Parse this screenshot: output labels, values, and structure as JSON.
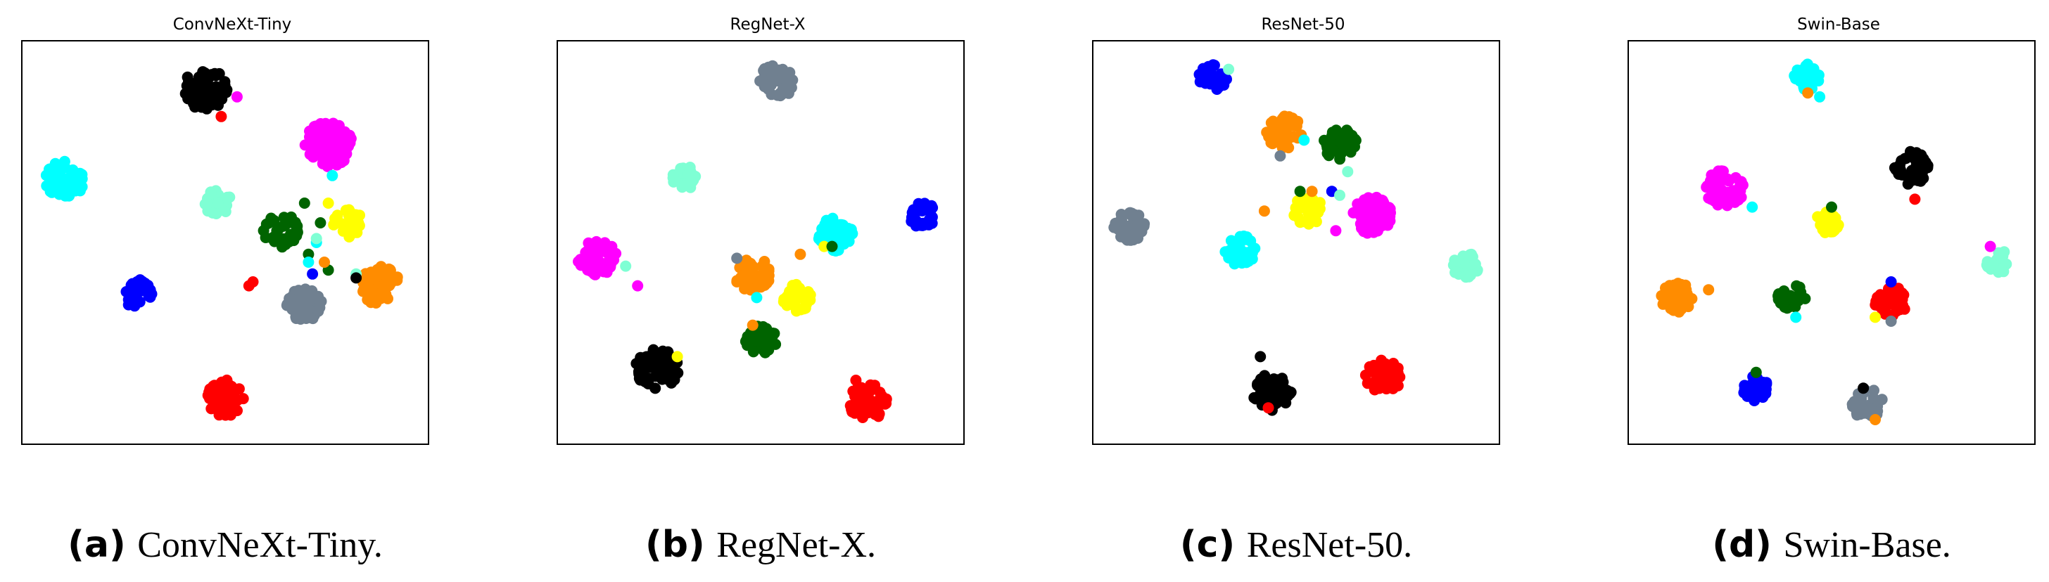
{
  "chart_data": [
    {
      "type": "scatter",
      "title": "ConvNeXt-Tiny",
      "caption_label": "(a)",
      "caption_text": "ConvNeXt-Tiny.",
      "xlim": [
        0,
        100
      ],
      "ylim": [
        0,
        100
      ],
      "axis_ticks": false,
      "grid": false,
      "clusters": [
        {
          "color": "#000000",
          "cx": 45,
          "cy": 89,
          "r": 5.5,
          "n": 80
        },
        {
          "color": "#ff00ff",
          "cx": 76,
          "cy": 75,
          "r": 6,
          "n": 90
        },
        {
          "color": "#00ffff",
          "cx": 9.5,
          "cy": 66,
          "r": 5,
          "n": 60
        },
        {
          "color": "#7fffd4",
          "cx": 48,
          "cy": 60,
          "r": 3.5,
          "n": 35
        },
        {
          "color": "#006400",
          "cx": 64,
          "cy": 53,
          "r": 4.5,
          "n": 40
        },
        {
          "color": "#ffff00",
          "cx": 81,
          "cy": 55,
          "r": 3.8,
          "n": 35
        },
        {
          "color": "#ff8c00",
          "cx": 89,
          "cy": 39,
          "r": 5.2,
          "n": 60
        },
        {
          "color": "#708090",
          "cx": 70,
          "cy": 34,
          "r": 4.5,
          "n": 55
        },
        {
          "color": "#0000ff",
          "cx": 28,
          "cy": 37,
          "r": 3.8,
          "n": 35
        },
        {
          "color": "#ff0000",
          "cx": 50,
          "cy": 10.5,
          "r": 4.8,
          "n": 70
        }
      ],
      "outliers": [
        {
          "color": "#ff00ff",
          "x": 53,
          "y": 87
        },
        {
          "color": "#ff0000",
          "x": 49,
          "y": 82
        },
        {
          "color": "#ff0000",
          "x": 56,
          "y": 39
        },
        {
          "color": "#ff0000",
          "x": 57,
          "y": 40
        },
        {
          "color": "#006400",
          "x": 70,
          "y": 60
        },
        {
          "color": "#006400",
          "x": 74,
          "y": 55
        },
        {
          "color": "#006400",
          "x": 71,
          "y": 47
        },
        {
          "color": "#006400",
          "x": 76,
          "y": 43
        },
        {
          "color": "#00ffff",
          "x": 73,
          "y": 50
        },
        {
          "color": "#00ffff",
          "x": 77,
          "y": 67
        },
        {
          "color": "#00ffff",
          "x": 71,
          "y": 45
        },
        {
          "color": "#7fffd4",
          "x": 73,
          "y": 51
        },
        {
          "color": "#7fffd4",
          "x": 83,
          "y": 42
        },
        {
          "color": "#ffff00",
          "x": 76,
          "y": 60
        },
        {
          "color": "#ff8c00",
          "x": 75,
          "y": 45
        },
        {
          "color": "#0000ff",
          "x": 72,
          "y": 42
        },
        {
          "color": "#000000",
          "x": 83,
          "y": 41
        }
      ]
    },
    {
      "type": "scatter",
      "title": "RegNet-X",
      "caption_label": "(b)",
      "caption_text": "RegNet-X.",
      "xlim": [
        0,
        100
      ],
      "ylim": [
        0,
        100
      ],
      "axis_ticks": false,
      "grid": false,
      "clusters": [
        {
          "color": "#708090",
          "cx": 54,
          "cy": 91,
          "r": 4.5,
          "n": 45
        },
        {
          "color": "#7fffd4",
          "cx": 31,
          "cy": 67,
          "r": 3.5,
          "n": 30
        },
        {
          "color": "#ff00ff",
          "cx": 9,
          "cy": 46,
          "r": 5,
          "n": 60
        },
        {
          "color": "#00ffff",
          "cx": 69,
          "cy": 52,
          "r": 4.5,
          "n": 45
        },
        {
          "color": "#0000ff",
          "cx": 91,
          "cy": 57,
          "r": 3.5,
          "n": 30
        },
        {
          "color": "#ff8c00",
          "cx": 48,
          "cy": 42,
          "r": 4.5,
          "n": 45
        },
        {
          "color": "#ffff00",
          "cx": 59,
          "cy": 36,
          "r": 3.8,
          "n": 35
        },
        {
          "color": "#006400",
          "cx": 50,
          "cy": 25,
          "r": 4,
          "n": 35
        },
        {
          "color": "#000000",
          "cx": 24,
          "cy": 18,
          "r": 5.5,
          "n": 70
        },
        {
          "color": "#ff0000",
          "cx": 77,
          "cy": 9.5,
          "r": 4.8,
          "n": 55
        }
      ],
      "outliers": [
        {
          "color": "#7fffd4",
          "x": 16,
          "y": 44
        },
        {
          "color": "#ff00ff",
          "x": 19,
          "y": 39
        },
        {
          "color": "#708090",
          "x": 44,
          "y": 46
        },
        {
          "color": "#ff8c00",
          "x": 60,
          "y": 47
        },
        {
          "color": "#ffff00",
          "x": 66,
          "y": 49
        },
        {
          "color": "#006400",
          "x": 68,
          "y": 49
        },
        {
          "color": "#00ffff",
          "x": 49,
          "y": 36
        },
        {
          "color": "#ff8c00",
          "x": 48,
          "y": 29
        },
        {
          "color": "#ffff00",
          "x": 29,
          "y": 21
        },
        {
          "color": "#ff0000",
          "x": 74,
          "y": 15
        }
      ]
    },
    {
      "type": "scatter",
      "title": "ResNet-50",
      "caption_label": "(c)",
      "caption_text": "ResNet-50.",
      "xlim": [
        0,
        100
      ],
      "ylim": [
        0,
        100
      ],
      "axis_ticks": false,
      "grid": false,
      "clusters": [
        {
          "color": "#0000ff",
          "cx": 29,
          "cy": 92,
          "r": 3.5,
          "n": 30
        },
        {
          "color": "#ff8c00",
          "cx": 47,
          "cy": 78,
          "r": 4.5,
          "n": 45
        },
        {
          "color": "#006400",
          "cx": 61,
          "cy": 75,
          "r": 4.2,
          "n": 40
        },
        {
          "color": "#ff00ff",
          "cx": 69,
          "cy": 57,
          "r": 5,
          "n": 60
        },
        {
          "color": "#ffff00",
          "cx": 53,
          "cy": 58,
          "r": 3.8,
          "n": 35
        },
        {
          "color": "#00ffff",
          "cx": 36,
          "cy": 48,
          "r": 4,
          "n": 40
        },
        {
          "color": "#708090",
          "cx": 8,
          "cy": 54,
          "r": 4,
          "n": 40
        },
        {
          "color": "#7fffd4",
          "cx": 93,
          "cy": 44,
          "r": 3.5,
          "n": 30
        },
        {
          "color": "#000000",
          "cx": 44,
          "cy": 12,
          "r": 5,
          "n": 55
        },
        {
          "color": "#ff0000",
          "cx": 72,
          "cy": 16,
          "r": 4.5,
          "n": 45
        }
      ],
      "outliers": [
        {
          "color": "#7fffd4",
          "x": 33,
          "y": 94
        },
        {
          "color": "#00ffff",
          "x": 52,
          "y": 76
        },
        {
          "color": "#708090",
          "x": 46,
          "y": 72
        },
        {
          "color": "#7fffd4",
          "x": 63,
          "y": 68
        },
        {
          "color": "#ff8c00",
          "x": 42,
          "y": 58
        },
        {
          "color": "#006400",
          "x": 51,
          "y": 63
        },
        {
          "color": "#ff8c00",
          "x": 54,
          "y": 63
        },
        {
          "color": "#0000ff",
          "x": 59,
          "y": 63
        },
        {
          "color": "#7fffd4",
          "x": 61,
          "y": 62
        },
        {
          "color": "#ff00ff",
          "x": 60,
          "y": 53
        },
        {
          "color": "#000000",
          "x": 41,
          "y": 21
        },
        {
          "color": "#ff0000",
          "x": 43,
          "y": 8
        }
      ]
    },
    {
      "type": "scatter",
      "title": "Swin-Base",
      "caption_label": "(d)",
      "caption_text": "Swin-Base.",
      "xlim": [
        0,
        100
      ],
      "ylim": [
        0,
        100
      ],
      "axis_ticks": false,
      "grid": false,
      "clusters": [
        {
          "color": "#00ffff",
          "cx": 44,
          "cy": 92,
          "r": 3.5,
          "n": 35
        },
        {
          "color": "#000000",
          "cx": 70,
          "cy": 69,
          "r": 4.5,
          "n": 45
        },
        {
          "color": "#ff00ff",
          "cx": 23,
          "cy": 64,
          "r": 5,
          "n": 55
        },
        {
          "color": "#ffff00",
          "cx": 49,
          "cy": 55,
          "r": 3,
          "n": 25
        },
        {
          "color": "#ff8c00",
          "cx": 11,
          "cy": 36,
          "r": 4,
          "n": 40
        },
        {
          "color": "#006400",
          "cx": 40,
          "cy": 36,
          "r": 3.5,
          "n": 30
        },
        {
          "color": "#ff0000",
          "cx": 65,
          "cy": 35,
          "r": 4.2,
          "n": 45
        },
        {
          "color": "#7fffd4",
          "cx": 92,
          "cy": 45,
          "r": 3.2,
          "n": 25
        },
        {
          "color": "#0000ff",
          "cx": 31,
          "cy": 13,
          "r": 3.5,
          "n": 30
        },
        {
          "color": "#708090",
          "cx": 59,
          "cy": 9,
          "r": 4,
          "n": 40
        }
      ],
      "outliers": [
        {
          "color": "#ff8c00",
          "x": 44,
          "y": 88
        },
        {
          "color": "#00ffff",
          "x": 47,
          "y": 87
        },
        {
          "color": "#ff0000",
          "x": 71,
          "y": 61
        },
        {
          "color": "#00ffff",
          "x": 30,
          "y": 59
        },
        {
          "color": "#006400",
          "x": 50,
          "y": 59
        },
        {
          "color": "#ff8c00",
          "x": 19,
          "y": 38
        },
        {
          "color": "#00ffff",
          "x": 41,
          "y": 31
        },
        {
          "color": "#ffff00",
          "x": 61,
          "y": 31
        },
        {
          "color": "#0000ff",
          "x": 65,
          "y": 40
        },
        {
          "color": "#708090",
          "x": 65,
          "y": 30
        },
        {
          "color": "#ff00ff",
          "x": 90,
          "y": 49
        },
        {
          "color": "#006400",
          "x": 31,
          "y": 17
        },
        {
          "color": "#000000",
          "x": 58,
          "y": 13
        },
        {
          "color": "#ff8c00",
          "x": 61,
          "y": 5
        }
      ]
    }
  ]
}
